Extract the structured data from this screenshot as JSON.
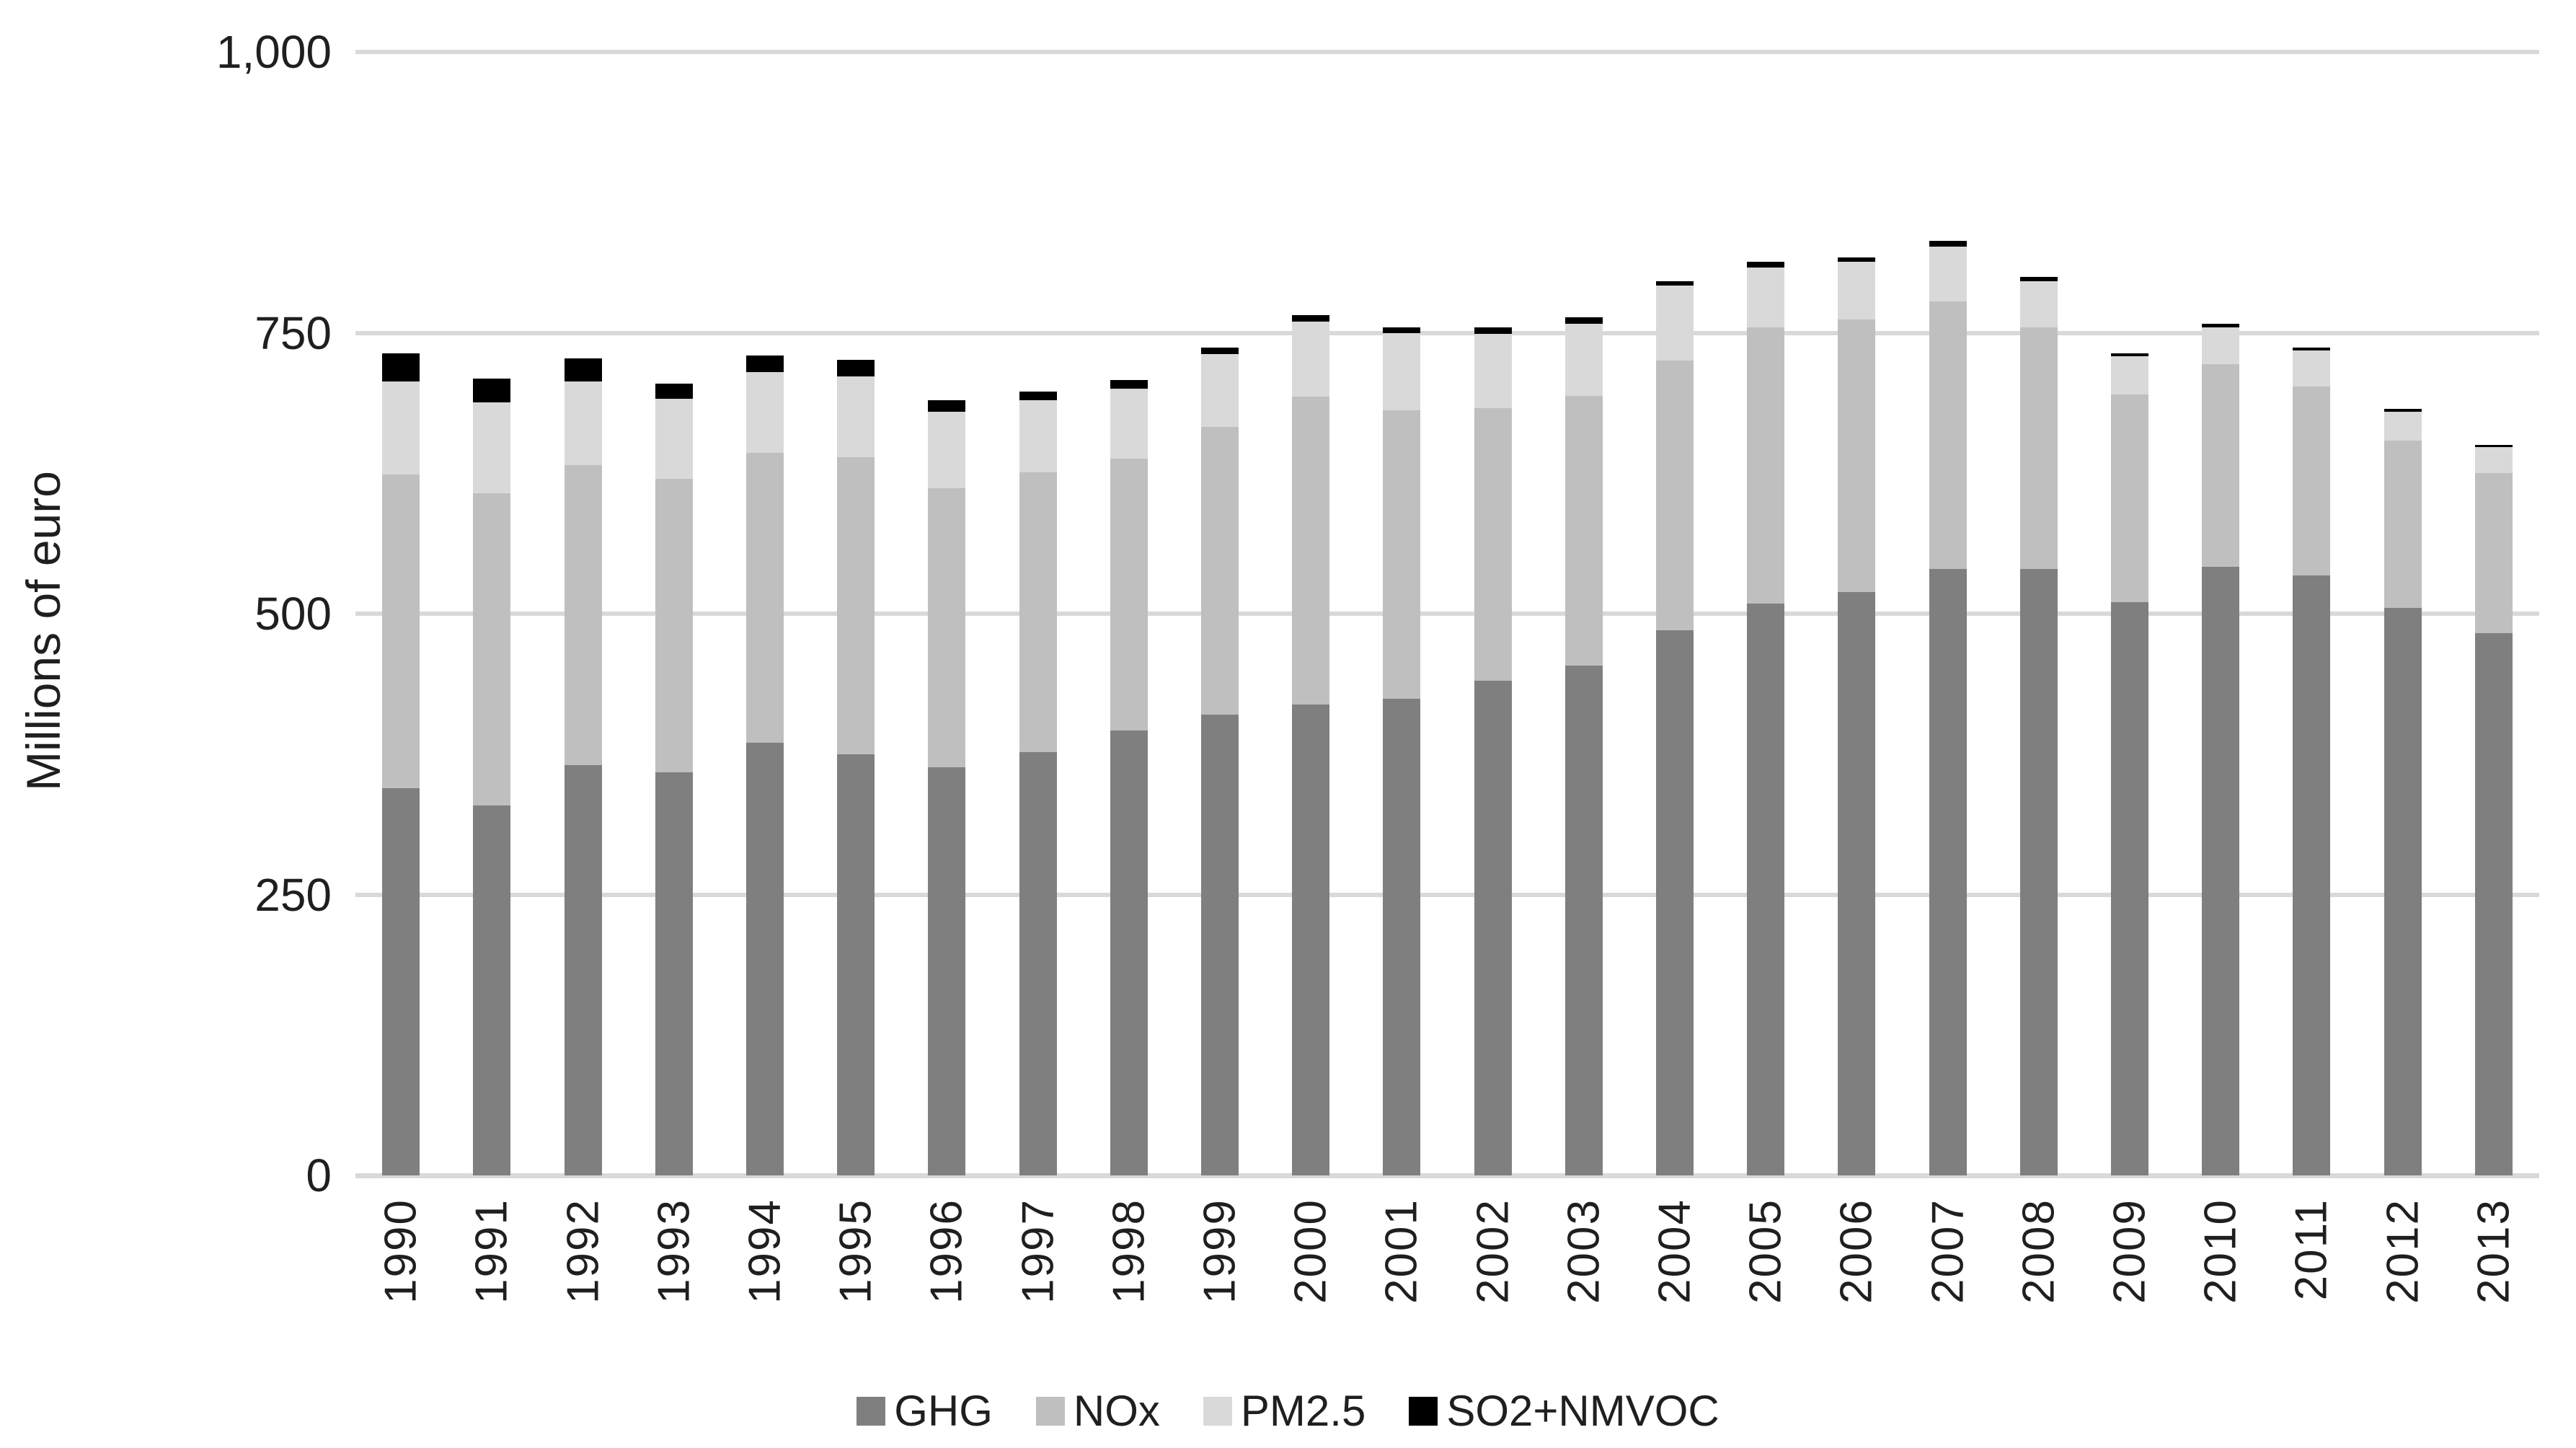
{
  "chart": {
    "ylabel": "Millions of euro",
    "background_color": "#ffffff",
    "gridline_color": "#d9d9d9",
    "text_color": "#1f1f1f"
  },
  "chart_data": {
    "type": "bar",
    "stacked": true,
    "title": "",
    "xlabel": "",
    "ylabel": "Millions of euro",
    "ylim": [
      0,
      1000
    ],
    "yticks": [
      {
        "value": 0,
        "label": "0"
      },
      {
        "value": 250,
        "label": "250"
      },
      {
        "value": 500,
        "label": "500"
      },
      {
        "value": 750,
        "label": "750"
      },
      {
        "value": 1000,
        "label": "1,000"
      }
    ],
    "grid": true,
    "legend_position": "bottom",
    "categories": [
      "1990",
      "1991",
      "1992",
      "1993",
      "1994",
      "1995",
      "1996",
      "1997",
      "1998",
      "1999",
      "2000",
      "2001",
      "2002",
      "2003",
      "2004",
      "2005",
      "2006",
      "2007",
      "2008",
      "2009",
      "2010",
      "2011",
      "2012",
      "2013"
    ],
    "series": [
      {
        "name": "GHG",
        "color": "#7f7f7f",
        "values": [
          345,
          329,
          365,
          359,
          385,
          375,
          363,
          377,
          396,
          410,
          419,
          424,
          440,
          454,
          485,
          509,
          519,
          540,
          540,
          510,
          542,
          534,
          505,
          483
        ]
      },
      {
        "name": "NOx",
        "color": "#bfbfbf",
        "values": [
          279,
          278,
          267,
          261,
          258,
          264,
          249,
          249,
          242,
          256,
          274,
          257,
          243,
          240,
          240,
          246,
          243,
          238,
          215,
          185,
          180,
          168,
          149,
          142
        ]
      },
      {
        "name": "PM2.5",
        "color": "#d9d9d9",
        "values": [
          83,
          81,
          75,
          71,
          72,
          72,
          68,
          64,
          62,
          65,
          67,
          69,
          66,
          64,
          67,
          53,
          51,
          49,
          41,
          34,
          33,
          32,
          26,
          23
        ]
      },
      {
        "name": "SO2+NMVOC",
        "color": "#000000",
        "values": [
          25,
          21,
          20,
          14,
          15,
          15,
          10,
          8,
          8,
          6,
          6,
          5,
          6,
          6,
          4,
          5,
          4,
          5,
          4,
          3,
          3,
          3,
          2,
          2
        ]
      }
    ]
  }
}
